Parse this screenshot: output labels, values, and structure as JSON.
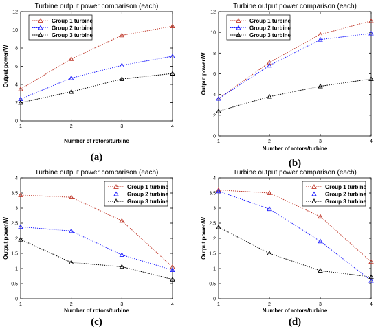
{
  "chart_data": [
    {
      "type": "line",
      "panel_label": "(a)",
      "title": "Turbine output power comparison (each)",
      "xlabel": "Number of rotors/turbine",
      "ylabel": "Output power/W",
      "x": [
        1,
        2,
        3,
        4
      ],
      "xlim": [
        1,
        4
      ],
      "ylim": [
        0,
        12
      ],
      "yticks": [
        0,
        2,
        4,
        6,
        8,
        10,
        12
      ],
      "grid": false,
      "legend_position": "top-left",
      "series": [
        {
          "name": "Group 1 turbine",
          "color": "#c0392b",
          "marker": "triangle",
          "values": [
            3.5,
            6.8,
            9.4,
            10.4
          ]
        },
        {
          "name": "Group 2 turbine",
          "color": "#1f1fff",
          "marker": "triangle",
          "values": [
            2.4,
            4.7,
            6.1,
            7.1
          ]
        },
        {
          "name": "Group 3 turbine",
          "color": "#000000",
          "marker": "triangle",
          "values": [
            2.0,
            3.2,
            4.6,
            5.2
          ]
        }
      ]
    },
    {
      "type": "line",
      "panel_label": "(b)",
      "title": "Turbine output power comparison (each)",
      "xlabel": "Number of rotors/turbine",
      "ylabel": "Output power/W",
      "x": [
        1,
        2,
        3,
        4
      ],
      "xlim": [
        1,
        4
      ],
      "ylim": [
        0,
        12
      ],
      "yticks": [
        0,
        2,
        4,
        6,
        8,
        10,
        12
      ],
      "grid": false,
      "legend_position": "top-left",
      "series": [
        {
          "name": "Group 1 turbine",
          "color": "#c0392b",
          "marker": "triangle",
          "values": [
            3.6,
            7.1,
            9.8,
            11.1
          ]
        },
        {
          "name": "Group 2 turbine",
          "color": "#1f1fff",
          "marker": "triangle",
          "values": [
            3.6,
            6.8,
            9.3,
            9.9
          ]
        },
        {
          "name": "Group 3 turbine",
          "color": "#000000",
          "marker": "triangle",
          "values": [
            2.4,
            3.8,
            4.8,
            5.5
          ]
        }
      ]
    },
    {
      "type": "line",
      "panel_label": "(c)",
      "title": "Turbine output power comparison (each)",
      "xlabel": "Number of rotors/turbine",
      "ylabel": "Output power/W",
      "x": [
        1,
        2,
        3,
        4
      ],
      "xlim": [
        1,
        4
      ],
      "ylim": [
        0,
        4
      ],
      "yticks": [
        0,
        0.5,
        1,
        1.5,
        2,
        2.5,
        3,
        3.5,
        4
      ],
      "grid": false,
      "legend_position": "top-right",
      "series": [
        {
          "name": "Group 1 turbine",
          "color": "#c0392b",
          "marker": "triangle",
          "values": [
            3.43,
            3.36,
            2.58,
            1.05
          ]
        },
        {
          "name": "Group 2 turbine",
          "color": "#1f1fff",
          "marker": "triangle",
          "values": [
            2.38,
            2.24,
            1.45,
            0.95
          ]
        },
        {
          "name": "Group 3 turbine",
          "color": "#000000",
          "marker": "triangle",
          "values": [
            1.96,
            1.2,
            1.06,
            0.64
          ]
        }
      ]
    },
    {
      "type": "line",
      "panel_label": "(d)",
      "title": "Turbine output power comparison (each)",
      "xlabel": "Number of rotors/turbine",
      "ylabel": "Output power/W",
      "x": [
        1,
        2,
        3,
        4
      ],
      "xlim": [
        1,
        4
      ],
      "ylim": [
        0,
        4
      ],
      "yticks": [
        0,
        0.5,
        1,
        1.5,
        2,
        2.5,
        3,
        3.5,
        4
      ],
      "grid": false,
      "legend_position": "top-right",
      "series": [
        {
          "name": "Group 1 turbine",
          "color": "#c0392b",
          "marker": "triangle",
          "values": [
            3.6,
            3.5,
            2.72,
            1.22
          ]
        },
        {
          "name": "Group 2 turbine",
          "color": "#1f1fff",
          "marker": "triangle",
          "values": [
            3.56,
            2.97,
            1.9,
            0.6
          ]
        },
        {
          "name": "Group 3 turbine",
          "color": "#000000",
          "marker": "triangle",
          "values": [
            2.37,
            1.5,
            0.93,
            0.72
          ]
        }
      ]
    }
  ]
}
